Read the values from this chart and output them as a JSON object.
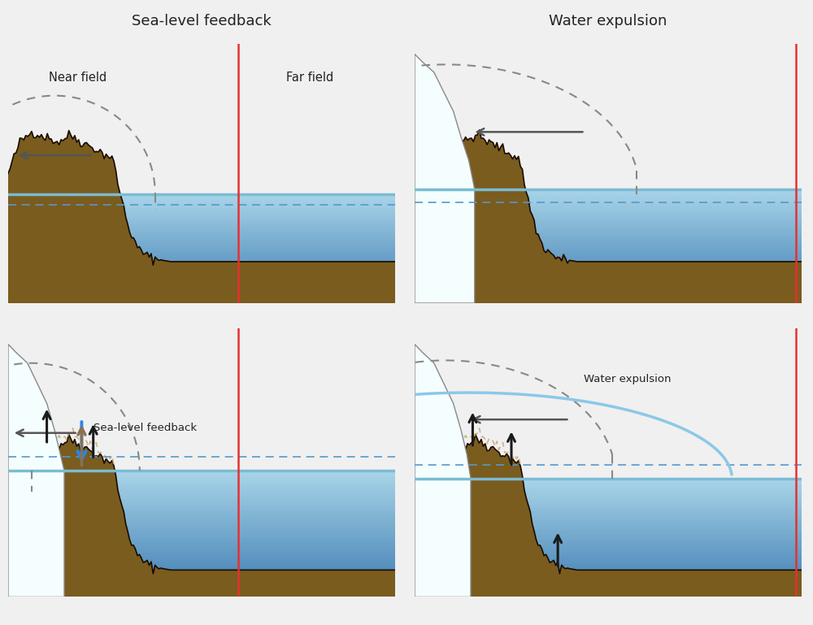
{
  "title_left": "Sea-level feedback",
  "title_right": "Water expulsion",
  "label_near": "Near field",
  "label_far": "Far field",
  "label_sea_feedback": "Sea-level feedback",
  "label_water_expulsion": "Water expulsion",
  "bg_color": "#f0f0f0",
  "ocean_light": "#a8d4e8",
  "ocean_mid": "#6aafd4",
  "ocean_deep": "#3a7ab0",
  "ground_top": "#9b7a2f",
  "ground_mid": "#7a5c1e",
  "ground_dark": "#5a3e0a",
  "ice_fill": "#f5feff",
  "ice_edge": "#c8d8e0",
  "dashed_color": "#888888",
  "red_line": "#e83030",
  "arrow_gray": "#555555",
  "blue_arrow": "#2288ee",
  "tan_arrow": "#8a7050",
  "black_arrow": "#1a1a1a",
  "dashed_ground": "#c8a878",
  "sea_solid": "#5599cc",
  "sea_dashed": "#5599cc"
}
